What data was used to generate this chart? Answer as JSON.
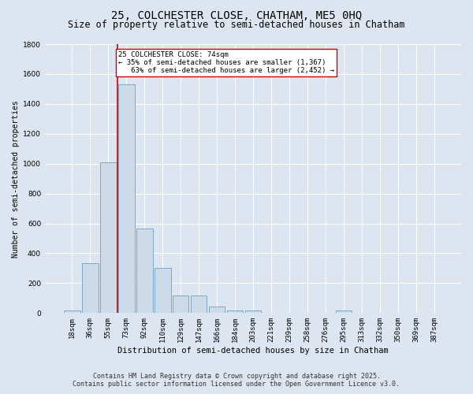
{
  "title": "25, COLCHESTER CLOSE, CHATHAM, ME5 0HQ",
  "subtitle": "Size of property relative to semi-detached houses in Chatham",
  "xlabel": "Distribution of semi-detached houses by size in Chatham",
  "ylabel": "Number of semi-detached properties",
  "categories": [
    "18sqm",
    "36sqm",
    "55sqm",
    "73sqm",
    "92sqm",
    "110sqm",
    "129sqm",
    "147sqm",
    "166sqm",
    "184sqm",
    "203sqm",
    "221sqm",
    "239sqm",
    "258sqm",
    "276sqm",
    "295sqm",
    "313sqm",
    "332sqm",
    "350sqm",
    "369sqm",
    "387sqm"
  ],
  "values": [
    20,
    335,
    1010,
    1530,
    565,
    300,
    120,
    120,
    45,
    20,
    20,
    0,
    0,
    0,
    0,
    20,
    0,
    0,
    0,
    0,
    0
  ],
  "bar_color": "#ccdaea",
  "bar_edge_color": "#7aaac8",
  "bar_linewidth": 0.7,
  "property_bar_index": 3,
  "red_line_color": "#cc0000",
  "annotation_text": "25 COLCHESTER CLOSE: 74sqm\n← 35% of semi-detached houses are smaller (1,367)\n   63% of semi-detached houses are larger (2,452) →",
  "annotation_box_color": "#ffffff",
  "annotation_box_edge": "#cc0000",
  "ylim": [
    0,
    1800
  ],
  "yticks": [
    0,
    200,
    400,
    600,
    800,
    1000,
    1200,
    1400,
    1600,
    1800
  ],
  "bg_color": "#dde6f0",
  "plot_bg_color": "#dde6f0",
  "grid_color": "#ffffff",
  "footer_line1": "Contains HM Land Registry data © Crown copyright and database right 2025.",
  "footer_line2": "Contains public sector information licensed under the Open Government Licence v3.0.",
  "title_fontsize": 10,
  "subtitle_fontsize": 8.5,
  "xlabel_fontsize": 7.5,
  "ylabel_fontsize": 7,
  "tick_fontsize": 6.5,
  "annotation_fontsize": 6.5,
  "footer_fontsize": 6
}
